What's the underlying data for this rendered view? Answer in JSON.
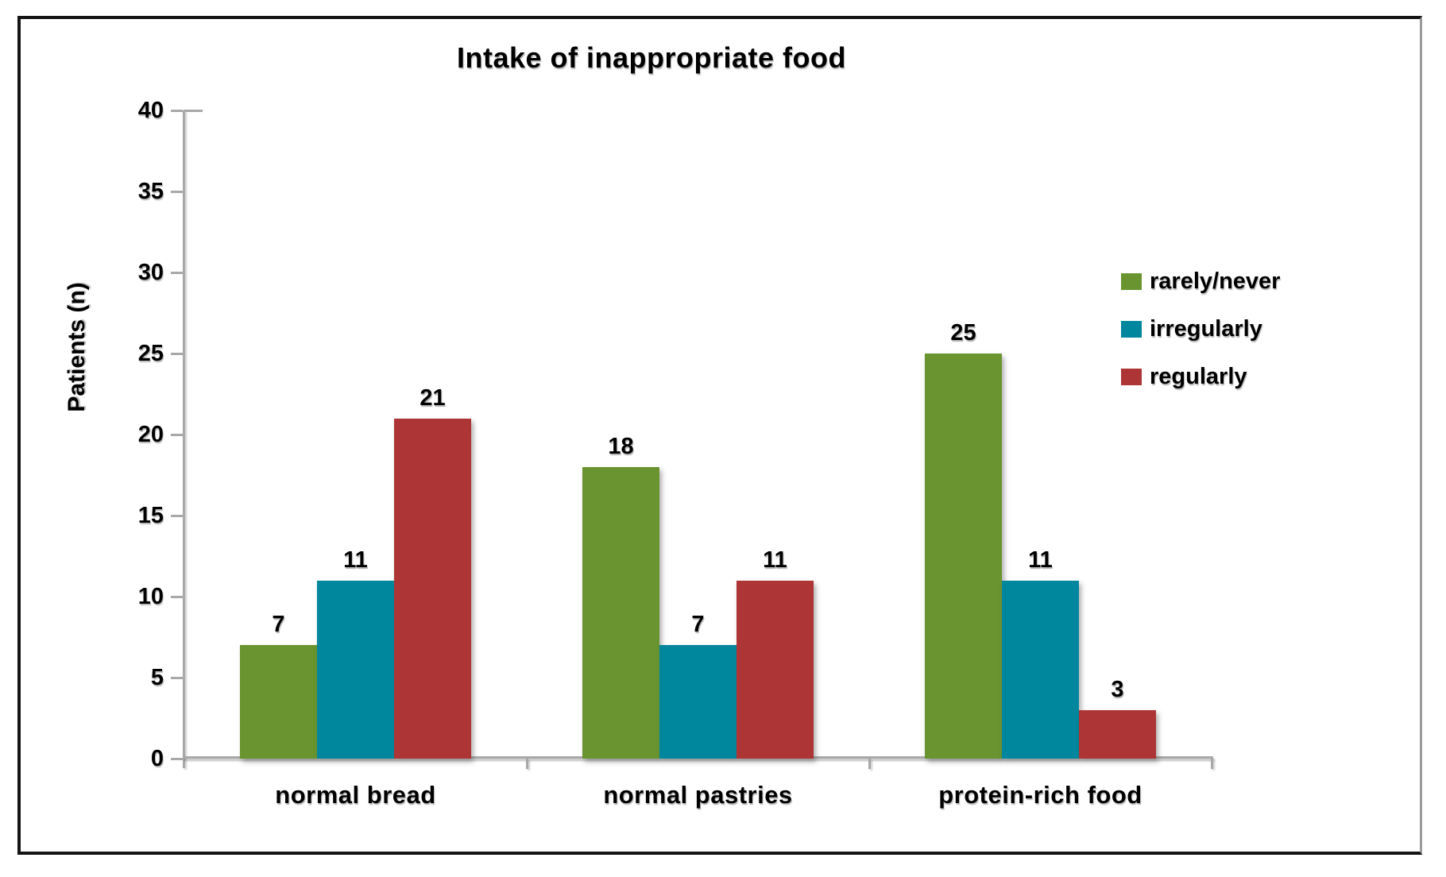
{
  "chart_data": {
    "type": "bar",
    "title": "Intake of inappropriate food",
    "ylabel": "Patients (n)",
    "xlabel": "",
    "categories": [
      "normal bread",
      "normal pastries",
      "protein-rich food"
    ],
    "series": [
      {
        "name": "rarely/never",
        "color": "#69942f",
        "values": [
          7,
          18,
          25
        ]
      },
      {
        "name": "irregularly",
        "color": "#00879e",
        "values": [
          11,
          7,
          11
        ]
      },
      {
        "name": "regularly",
        "color": "#ae3535",
        "values": [
          21,
          11,
          3
        ]
      }
    ],
    "ylim": [
      0,
      40
    ],
    "ytick_step": 5,
    "grid": false,
    "legend_position": "right",
    "axis_color": "#a8a8a8",
    "text_color": "#000000"
  }
}
